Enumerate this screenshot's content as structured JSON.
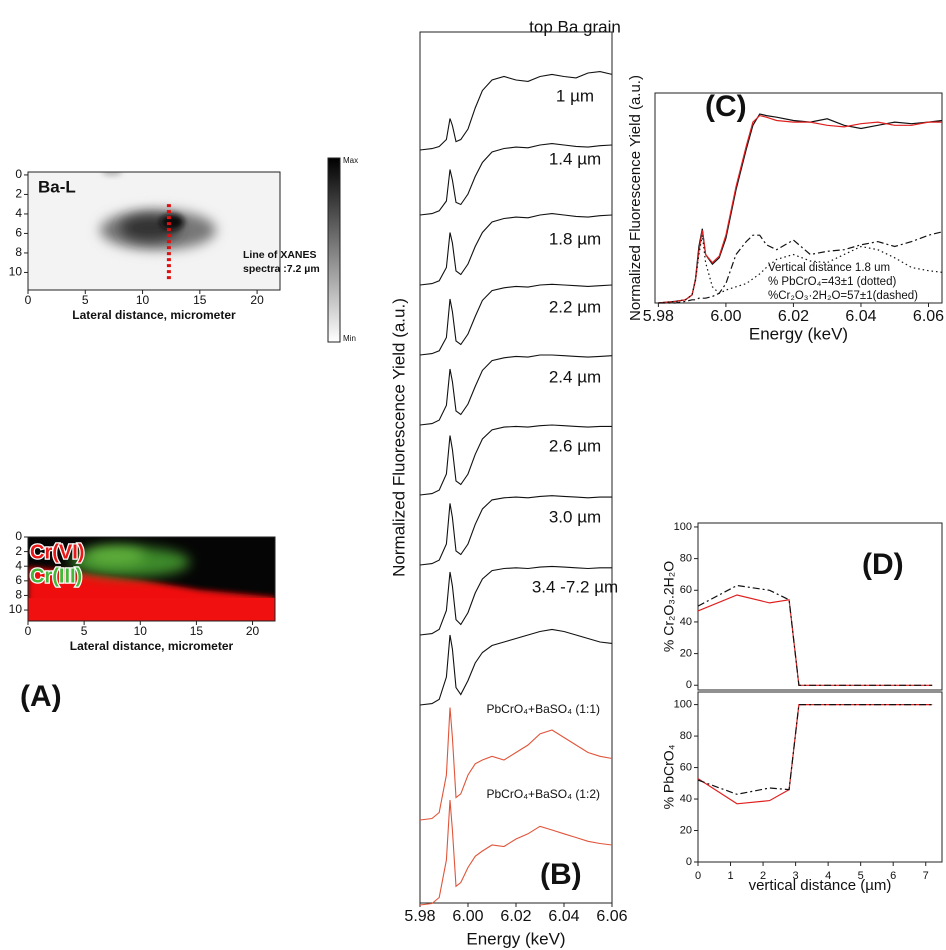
{
  "chart_data": [
    {
      "type": "map",
      "panel_label": "(A)",
      "label": "Ba-L",
      "annotation": [
        "Line of XANES",
        "spectra :7.2 µm"
      ],
      "xlabel": "Lateral distance, micrometer",
      "xlim": [
        0,
        22
      ],
      "ylim": [
        11.8,
        -0.3
      ],
      "xticks": [
        0,
        5,
        10,
        15,
        20
      ],
      "yticks": [
        0,
        2,
        4,
        6,
        8,
        10
      ],
      "colorbar": [
        "Max",
        "Min"
      ],
      "xanes_line": {
        "x": 12.3,
        "y": [
          3,
          10.8
        ]
      }
    },
    {
      "type": "map",
      "labels": [
        "Cr(VI)",
        "Cr(III)"
      ],
      "xlabel": "Lateral distance, micrometer",
      "xlim": [
        0,
        22
      ],
      "ylim": [
        11.5,
        0
      ],
      "xticks": [
        0,
        5,
        10,
        15,
        20
      ],
      "yticks": [
        0,
        2,
        4,
        6,
        8,
        10
      ]
    },
    {
      "type": "stacked-spectra",
      "panel_label": "(B)",
      "xlabel": "Energy (keV)",
      "ylabel": "Normalized Fluorescence Yield (a.u.)",
      "xlim": [
        5.98,
        6.06
      ],
      "xticks": [
        5.98,
        6.0,
        6.02,
        6.04,
        6.06
      ],
      "xtick_labels": [
        "5.98",
        "6.00",
        "6.02",
        "6.04",
        "6.06"
      ],
      "x": [
        5.98,
        5.985,
        5.988,
        5.991,
        5.9925,
        5.9935,
        5.995,
        5.997,
        6.0,
        6.003,
        6.006,
        6.01,
        6.015,
        6.02,
        6.025,
        6.03,
        6.035,
        6.04,
        6.045,
        6.05,
        6.055,
        6.06
      ],
      "series": [
        {
          "name": "top Ba grain",
          "color": "#111111",
          "values": [
            0,
            0.02,
            0.05,
            0.15,
            0.45,
            0.35,
            0.12,
            0.15,
            0.3,
            0.6,
            0.85,
            1.0,
            1.05,
            1.0,
            0.98,
            1.05,
            1.08,
            1.05,
            1.03,
            1.1,
            1.12,
            1.08
          ]
        },
        {
          "name": "1 µm",
          "color": "#111111",
          "values": [
            0,
            0.02,
            0.06,
            0.2,
            0.65,
            0.5,
            0.18,
            0.15,
            0.3,
            0.55,
            0.75,
            0.9,
            0.95,
            0.97,
            0.96,
            1.0,
            1.02,
            1.0,
            0.98,
            0.97,
            0.99,
            1.0
          ]
        },
        {
          "name": "1.4 µm",
          "color": "#111111",
          "values": [
            0,
            0.02,
            0.06,
            0.25,
            0.75,
            0.6,
            0.2,
            0.15,
            0.3,
            0.55,
            0.75,
            0.9,
            0.95,
            0.97,
            0.96,
            1.0,
            1.02,
            1.0,
            0.98,
            0.97,
            0.99,
            1.0
          ]
        },
        {
          "name": "1.8 µm",
          "color": "#111111",
          "values": [
            0,
            0.02,
            0.06,
            0.25,
            0.8,
            0.62,
            0.2,
            0.15,
            0.3,
            0.55,
            0.78,
            0.92,
            0.96,
            0.98,
            0.97,
            1.0,
            1.01,
            1.0,
            0.99,
            0.98,
            0.99,
            1.0
          ]
        },
        {
          "name": "2.2 µm",
          "color": "#111111",
          "values": [
            0,
            0.02,
            0.07,
            0.28,
            0.8,
            0.62,
            0.2,
            0.15,
            0.3,
            0.55,
            0.78,
            0.92,
            0.96,
            0.98,
            0.97,
            1.0,
            1.0,
            0.99,
            0.98,
            0.97,
            0.98,
            0.99
          ]
        },
        {
          "name": "2.4 µm",
          "color": "#111111",
          "values": [
            0,
            0.02,
            0.07,
            0.3,
            0.85,
            0.65,
            0.2,
            0.15,
            0.3,
            0.58,
            0.8,
            0.93,
            0.97,
            0.98,
            0.97,
            0.99,
            1.0,
            0.99,
            0.98,
            0.97,
            0.98,
            0.98
          ]
        },
        {
          "name": "2.6 µm",
          "color": "#111111",
          "values": [
            0,
            0.02,
            0.07,
            0.3,
            0.88,
            0.68,
            0.2,
            0.15,
            0.3,
            0.58,
            0.8,
            0.93,
            0.96,
            0.97,
            0.96,
            0.98,
            0.99,
            0.98,
            0.97,
            0.96,
            0.97,
            0.97
          ]
        },
        {
          "name": "3.0 µm",
          "color": "#111111",
          "values": [
            0,
            0.02,
            0.08,
            0.35,
            0.9,
            0.7,
            0.22,
            0.15,
            0.32,
            0.6,
            0.8,
            0.92,
            0.95,
            0.96,
            0.95,
            0.97,
            0.98,
            0.97,
            0.96,
            0.95,
            0.96,
            0.96
          ]
        },
        {
          "name": "3.4 -7.2 µm",
          "color": "#111111",
          "values": [
            0,
            0.02,
            0.08,
            0.4,
            1.0,
            0.8,
            0.25,
            0.15,
            0.35,
            0.6,
            0.75,
            0.85,
            0.9,
            0.95,
            1.0,
            1.05,
            1.08,
            1.05,
            1.0,
            0.95,
            0.9,
            0.88
          ]
        },
        {
          "name": "PbCrO₄+BaSO₄ (1:1)",
          "color": "#e0553a",
          "values": [
            0,
            0.02,
            0.1,
            0.6,
            1.5,
            1.1,
            0.3,
            0.35,
            0.6,
            0.75,
            0.8,
            0.85,
            0.8,
            0.9,
            1.0,
            1.15,
            1.2,
            1.1,
            1.0,
            0.9,
            0.85,
            0.82
          ]
        },
        {
          "name": "PbCrO₄+BaSO₄ (1:2)",
          "color": "#e0553a",
          "values": [
            0,
            0.02,
            0.1,
            0.6,
            1.4,
            1.0,
            0.25,
            0.3,
            0.5,
            0.65,
            0.72,
            0.8,
            0.78,
            0.88,
            0.95,
            1.05,
            1.0,
            0.95,
            0.9,
            0.85,
            0.82,
            0.8
          ]
        }
      ]
    },
    {
      "type": "line",
      "panel_label": "(C)",
      "xlabel": "Energy (keV)",
      "ylabel": "Normalized Fluorescence Yield (a.u.)",
      "annotation": [
        "Vertical distance 1.8 um",
        "% PbCrO₄=43±1 (dotted)",
        "%Cr₂O₃·2H₂O=57±1(dashed)"
      ],
      "xlim": [
        5.979,
        6.064
      ],
      "ylim": [
        0,
        1.3
      ],
      "xticks": [
        5.98,
        6.0,
        6.02,
        6.04,
        6.06
      ],
      "xtick_labels": [
        "5.98",
        "6.00",
        "6.02",
        "6.04",
        "6.06"
      ],
      "x": [
        5.98,
        5.985,
        5.988,
        5.99,
        5.991,
        5.992,
        5.993,
        5.994,
        5.996,
        5.998,
        6.0,
        6.003,
        6.006,
        6.008,
        6.01,
        6.012,
        6.015,
        6.02,
        6.025,
        6.03,
        6.035,
        6.04,
        6.045,
        6.05,
        6.055,
        6.06,
        6.064
      ],
      "series": [
        {
          "color": "#111111",
          "dash": "solid",
          "values": [
            0,
            0.01,
            0.02,
            0.05,
            0.15,
            0.35,
            0.46,
            0.3,
            0.24,
            0.28,
            0.4,
            0.7,
            0.95,
            1.1,
            1.17,
            1.16,
            1.15,
            1.13,
            1.12,
            1.14,
            1.1,
            1.08,
            1.1,
            1.12,
            1.11,
            1.12,
            1.13
          ]
        },
        {
          "color": "#e02020",
          "dash": "solid",
          "values": [
            0,
            0.01,
            0.02,
            0.05,
            0.14,
            0.32,
            0.45,
            0.3,
            0.25,
            0.29,
            0.42,
            0.72,
            0.97,
            1.12,
            1.16,
            1.15,
            1.13,
            1.12,
            1.12,
            1.1,
            1.09,
            1.11,
            1.12,
            1.1,
            1.1,
            1.12,
            1.12
          ]
        },
        {
          "color": "#111111",
          "dash": "dotted",
          "values": [
            0,
            0.01,
            0.02,
            0.05,
            0.14,
            0.3,
            0.42,
            0.25,
            0.1,
            0.06,
            0.08,
            0.1,
            0.12,
            0.15,
            0.18,
            0.22,
            0.27,
            0.3,
            0.26,
            0.25,
            0.3,
            0.35,
            0.33,
            0.28,
            0.22,
            0.2,
            0.19
          ]
        },
        {
          "color": "#111111",
          "dash": "dashed",
          "values": [
            0,
            0,
            0.01,
            0.02,
            0.02,
            0.03,
            0.03,
            0.03,
            0.04,
            0.06,
            0.12,
            0.3,
            0.38,
            0.42,
            0.42,
            0.36,
            0.33,
            0.39,
            0.3,
            0.32,
            0.33,
            0.36,
            0.38,
            0.35,
            0.38,
            0.42,
            0.44
          ]
        }
      ]
    },
    {
      "type": "line",
      "panel_label": "(D)",
      "ylabel": "% Cr₂O₃.2H₂O",
      "xlim": [
        0,
        7.5
      ],
      "ylim": [
        -3,
        102.5
      ],
      "yticks": [
        0,
        20,
        40,
        60,
        80,
        100
      ],
      "x": [
        0,
        1.2,
        2.2,
        2.8,
        3.1,
        7.2
      ],
      "series": [
        {
          "color": "#e02020",
          "dash": "solid",
          "values": [
            47,
            57,
            52,
            54,
            0,
            0
          ]
        },
        {
          "color": "#111111",
          "dash": "dashed",
          "values": [
            50,
            63,
            60,
            54,
            0,
            0
          ]
        }
      ]
    },
    {
      "type": "line",
      "ylabel": "% PbCrO₄",
      "xlabel": "vertical distance (µm)",
      "xlim": [
        0,
        7.5
      ],
      "ylim": [
        0,
        108
      ],
      "xticks": [
        0,
        1,
        2,
        3,
        4,
        5,
        6,
        7
      ],
      "yticks": [
        0,
        20,
        40,
        60,
        80,
        100
      ],
      "x": [
        0,
        1.2,
        2.2,
        2.8,
        3.1,
        7.2
      ],
      "series": [
        {
          "color": "#e02020",
          "dash": "solid",
          "values": [
            53,
            37,
            39,
            46,
            100,
            100
          ]
        },
        {
          "color": "#111111",
          "dash": "dashed",
          "values": [
            52,
            43,
            47,
            46,
            100,
            100
          ]
        }
      ]
    }
  ]
}
